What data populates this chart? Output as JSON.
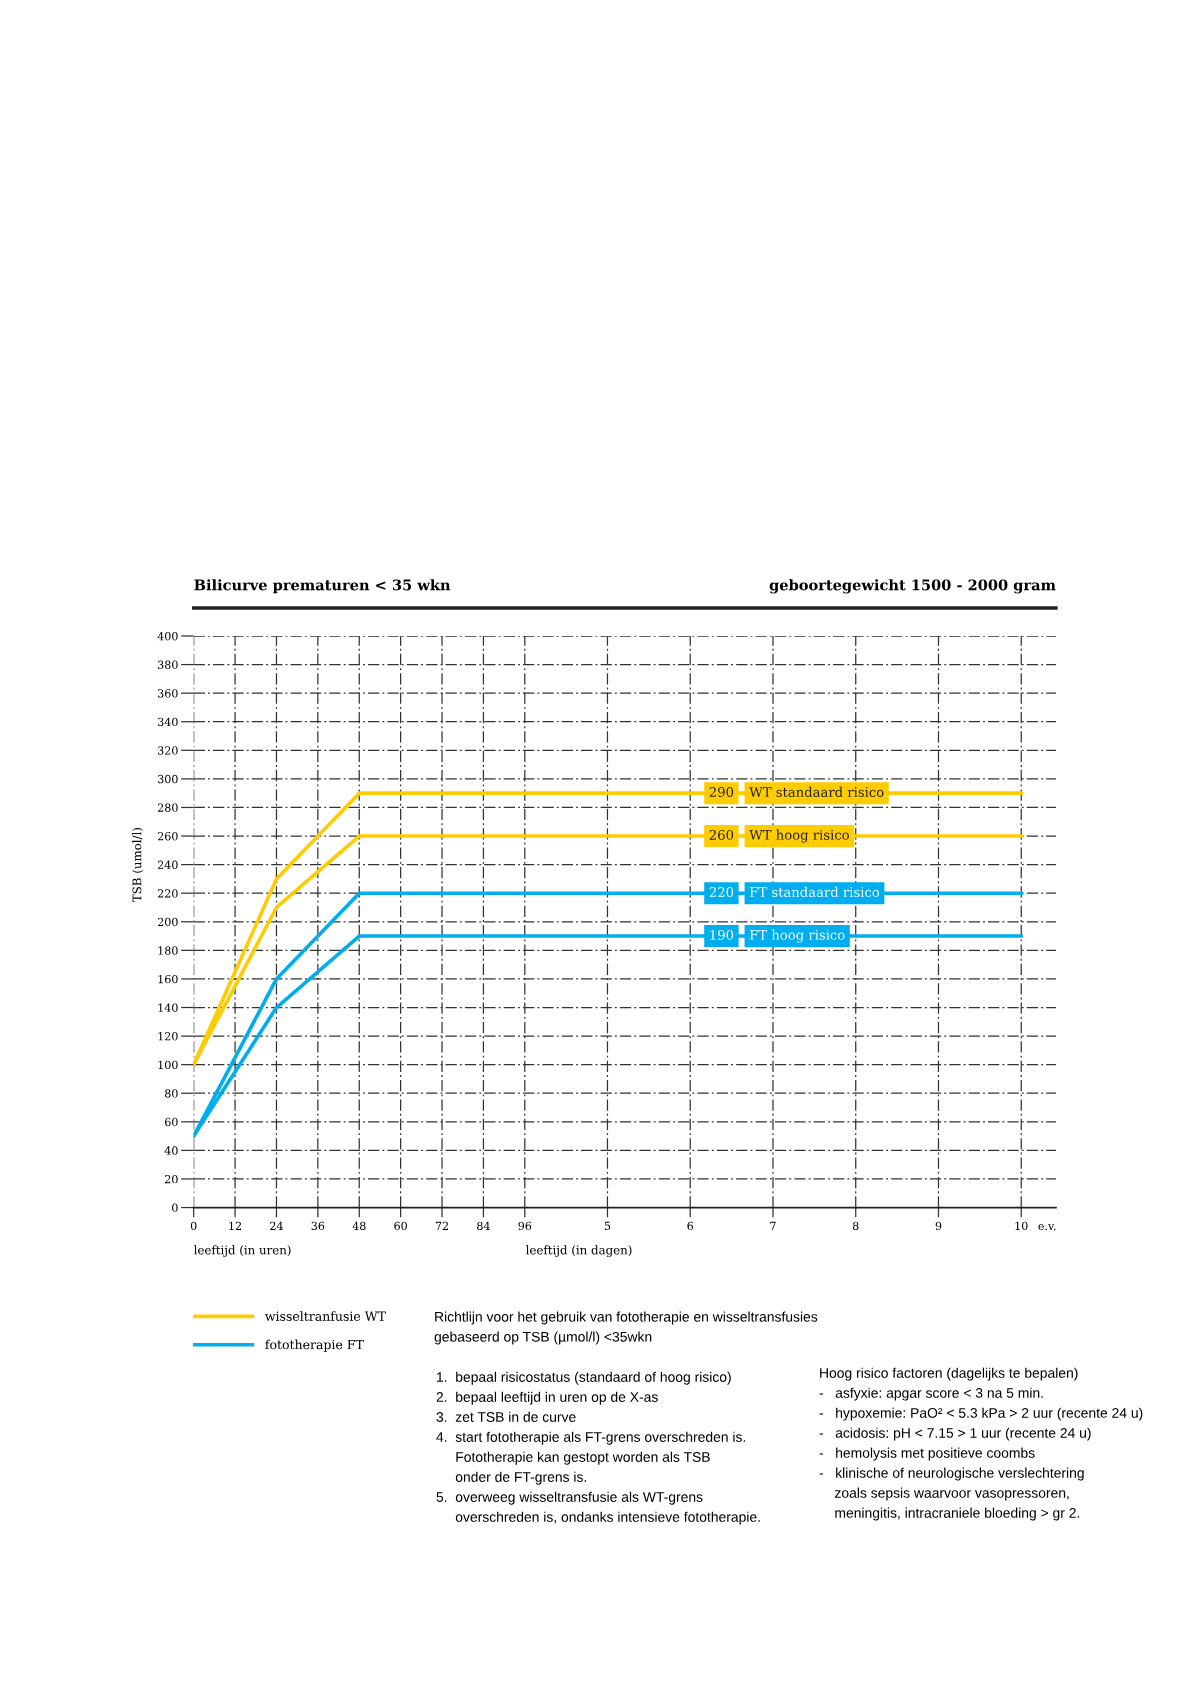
{
  "chart_data": {
    "type": "line",
    "title": "Bilicurve prematuren < 35 wkn",
    "subtitle": "geboortegewicht 1500 - 2000 gram",
    "xlabel": "leeftijd (in uren)",
    "x2label": "leeftijd (in dagen)",
    "ylabel": "TSB (umol/l)",
    "x": [
      0,
      24,
      48,
      153,
      240
    ],
    "series": [
      {
        "name": "wisseltranfusie WT",
        "color": "#ffcc00",
        "values": [
          100,
          230,
          290,
          290,
          290
        ],
        "value_labels": [
          null,
          null,
          null,
          "290",
          null
        ]
      },
      {
        "color": "#ffcc00",
        "values": [
          100,
          210,
          260,
          260,
          260
        ],
        "value_labels": [
          null,
          null,
          null,
          "260",
          null
        ]
      },
      {
        "name": "fototherapie FT",
        "color": "#00aeef",
        "values": [
          50,
          160,
          220,
          220,
          220
        ],
        "value_labels": [
          null,
          null,
          null,
          "220",
          null
        ]
      },
      {
        "color": "#00aeef",
        "values": [
          50,
          140,
          190,
          190,
          190
        ],
        "value_labels": [
          null,
          null,
          null,
          "190",
          null
        ]
      }
    ],
    "xlim": [
      0,
      250
    ],
    "xticks": [
      0,
      12,
      24,
      36,
      48,
      60,
      72,
      84,
      96
    ],
    "x2lim": [
      0,
      10.42
    ],
    "x2ticks": [
      5,
      6,
      7,
      8,
      9,
      10
    ],
    "ylim": [
      0,
      400
    ],
    "yticks": [
      0,
      20,
      40,
      60,
      80,
      100,
      120,
      140,
      160,
      180,
      200,
      220,
      240,
      260,
      280,
      300,
      320,
      340,
      360,
      380,
      400
    ],
    "grid": true,
    "legend": "bottom left",
    "line_style": "solid",
    "annotations": [
      "WT standaard risico",
      "WT hoog risico",
      "FT standaard risico",
      "FT hoog risico",
      "e.v.",
      "Richtlijn voor het gebruik van fototherapie en wisseltransfusies\ngebaseerd op TSB (µmol/l) <35wkn",
      "1.  bepaal risicostatus (standaard of hoog risico)\n2.  bepaal leeftijd in uren op de X-as\n3.  zet TSB in de curve\n4.  start fototherapie als FT-grens overschreden is.\n     Fototherapie kan gestopt worden als TSB\n     onder de FT-grens is.\n5.  overweeg wisseltransfusie als WT-grens\n     overschreden is, ondanks intensieve fototherapie.",
      "Hoog risico factoren (dagelijks te bepalen)\n-   asfyxie: apgar score < 3 na 5 min.\n-   hypoxemie: PaO² < 5.3 kPa > 2 uur (recente 24 u)\n-   acidosis: pH < 7.15 > 1 uur (recente 24 u)\n-   hemolysis met positieve coombs\n-   klinische of neurologische verslechtering\n    zoals sepsis waarvoor vasopressoren,\n    meningitis, intracraniele bloeding > gr 2."
    ]
  }
}
